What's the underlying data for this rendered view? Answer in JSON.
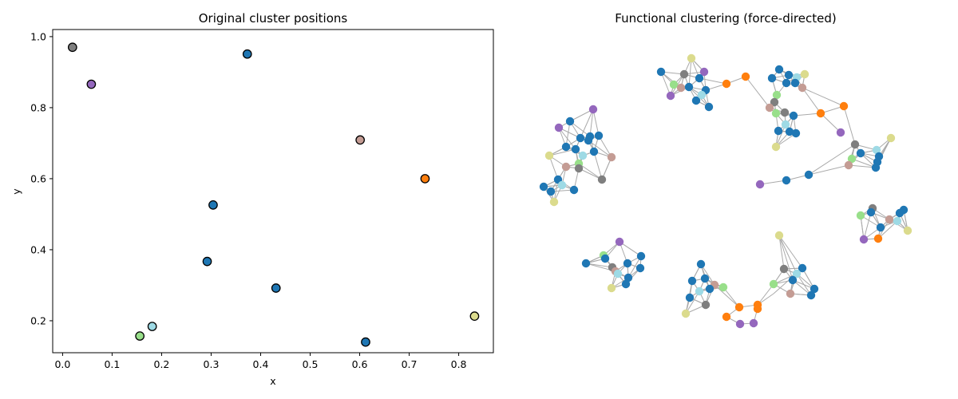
{
  "chart_data": [
    {
      "type": "scatter",
      "title": "Original cluster positions",
      "xlabel": "x",
      "ylabel": "y",
      "xlim": [
        -0.02,
        0.87
      ],
      "ylim": [
        0.11,
        1.02
      ],
      "xticks": [
        "0.0",
        "0.1",
        "0.2",
        "0.3",
        "0.4",
        "0.5",
        "0.6",
        "0.7",
        "0.8"
      ],
      "yticks": [
        "0.2",
        "0.4",
        "0.6",
        "0.8",
        "1.0"
      ],
      "grid": false,
      "points": [
        {
          "x": 0.02,
          "y": 0.97,
          "color": "#7f7f7f"
        },
        {
          "x": 0.058,
          "y": 0.866,
          "color": "#9467bd"
        },
        {
          "x": 0.373,
          "y": 0.951,
          "color": "#1f77b4"
        },
        {
          "x": 0.601,
          "y": 0.709,
          "color": "#c49c94"
        },
        {
          "x": 0.732,
          "y": 0.6,
          "color": "#ff7f0e"
        },
        {
          "x": 0.304,
          "y": 0.526,
          "color": "#1f77b4"
        },
        {
          "x": 0.292,
          "y": 0.367,
          "color": "#1f77b4"
        },
        {
          "x": 0.431,
          "y": 0.292,
          "color": "#1f77b4"
        },
        {
          "x": 0.832,
          "y": 0.213,
          "color": "#dbdb8d"
        },
        {
          "x": 0.181,
          "y": 0.184,
          "color": "#9edae5"
        },
        {
          "x": 0.156,
          "y": 0.157,
          "color": "#98df8a"
        },
        {
          "x": 0.612,
          "y": 0.14,
          "color": "#1f77b4"
        }
      ]
    },
    {
      "type": "network",
      "title": "Functional clustering (force-directed)",
      "node_color": "",
      "edge_color": "#aaaaaa"
    }
  ]
}
